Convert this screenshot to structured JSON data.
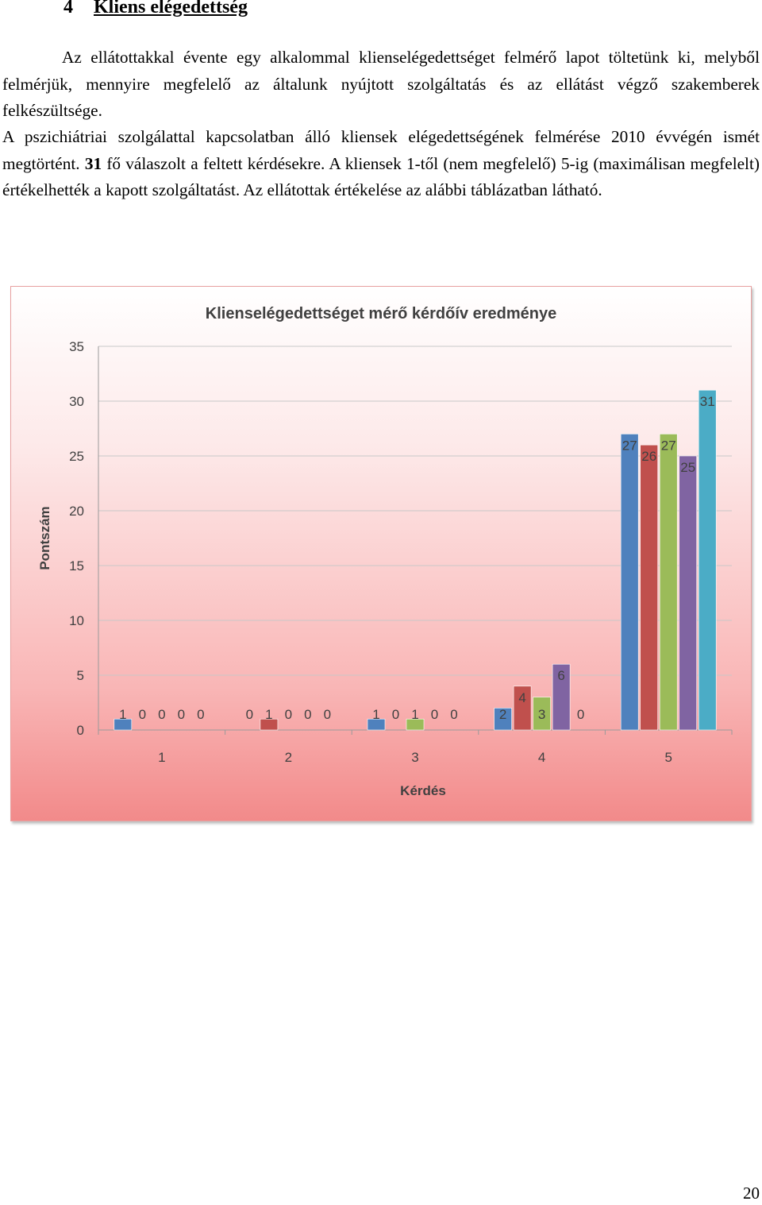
{
  "heading": {
    "number": "4",
    "title": "Kliens elégedettség"
  },
  "paragraph1": "Az ellátottakkal évente egy alkalommal klienselégedettséget felmérő lapot töltetünk ki, melyből felmérjük, mennyire megfelelő az általunk nyújtott szolgáltatás és az ellátást végző szakemberek felkészültsége.",
  "paragraph2": {
    "before": "A pszichiátriai szolgálattal kapcsolatban álló kliensek elégedettségének felmérése 2010 évvégén ismét megtörtént. ",
    "bold": "31",
    "after": " fő válaszolt a feltett kérdésekre. A kliensek 1-től (nem megfelelő) 5-ig (maximálisan megfelelt) értékelhették a kapott szolgáltatást. Az ellátottak értékelése az alábbi táblázatban látható."
  },
  "chart_data": {
    "type": "bar",
    "title": "Klienselégedettséget mérő kérdőív eredménye",
    "xlabel": "Kérdés",
    "ylabel": "Pontszám",
    "categories": [
      "1",
      "2",
      "3",
      "4",
      "5"
    ],
    "ylim": [
      0,
      35
    ],
    "yticks": [
      "0",
      "5",
      "10",
      "15",
      "20",
      "25",
      "30",
      "35"
    ],
    "grid": true,
    "legend": "none",
    "series": [
      {
        "values": [
          1,
          0,
          1,
          2,
          27
        ],
        "color": "#4f81bd"
      },
      {
        "values": [
          0,
          1,
          0,
          4,
          26
        ],
        "color": "#c0504d"
      },
      {
        "values": [
          0,
          0,
          1,
          3,
          27
        ],
        "color": "#9bbb59"
      },
      {
        "values": [
          0,
          0,
          0,
          6,
          25
        ],
        "color": "#8064a2"
      },
      {
        "values": [
          0,
          0,
          0,
          0,
          31
        ],
        "color": "#4bacc6"
      }
    ]
  },
  "page_number": "20"
}
